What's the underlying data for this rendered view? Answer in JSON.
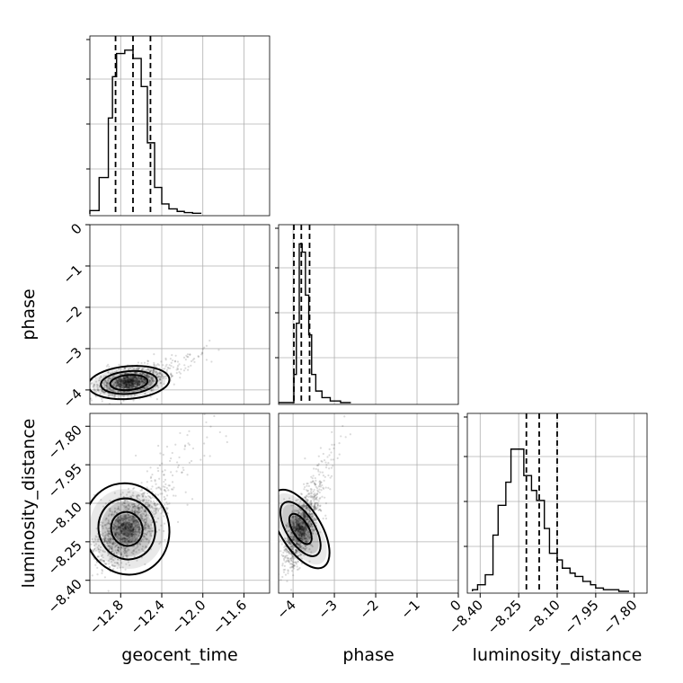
{
  "chart_data": {
    "type": "corner",
    "parameters": [
      "geocent_time",
      "phase",
      "luminosity_distance"
    ],
    "ranges": {
      "geocent_time": [
        -13.1,
        -11.35
      ],
      "phase": [
        -4.35,
        0
      ],
      "luminosity_distance": [
        -8.45,
        -7.75
      ]
    },
    "ticks": {
      "geocent_time": [
        -12.8,
        -12.4,
        -12.0,
        -11.6
      ],
      "phase": [
        -4,
        -3,
        -2,
        -1,
        0
      ],
      "luminosity_distance": [
        -8.4,
        -8.25,
        -8.1,
        -7.95,
        -7.8
      ]
    },
    "tick_labels": {
      "geocent_time": [
        "−12.8",
        "−12.4",
        "−12.0",
        "−11.6"
      ],
      "phase": [
        "−4",
        "−3",
        "−2",
        "−1",
        "0"
      ],
      "luminosity_distance": [
        "−8.40",
        "−8.25",
        "−8.10",
        "−7.95",
        "−7.80"
      ]
    },
    "quantiles": {
      "geocent_time": [
        -12.85,
        -12.68,
        -12.51
      ],
      "phase": [
        -3.98,
        -3.8,
        -3.6
      ],
      "luminosity_distance": [
        -8.22,
        -8.17,
        -8.1
      ]
    },
    "histograms": {
      "geocent_time": {
        "edges": [
          -13.1,
          -13.01,
          -12.92,
          -12.88,
          -12.84,
          -12.76,
          -12.68,
          -12.6,
          -12.54,
          -12.47,
          -12.4,
          -12.33,
          -12.25,
          -12.18,
          -12.1,
          -12.02
        ],
        "counts": [
          0.02,
          0.22,
          0.58,
          0.83,
          0.97,
          0.99,
          0.94,
          0.77,
          0.43,
          0.16,
          0.06,
          0.03,
          0.015,
          0.008,
          0.004
        ]
      },
      "phase": {
        "edges": [
          -4.35,
          -3.98,
          -3.92,
          -3.85,
          -3.78,
          -3.7,
          -3.62,
          -3.55,
          -3.45,
          -3.3,
          -3.1,
          -2.85,
          -2.6
        ],
        "counts": [
          0.0,
          0.17,
          0.48,
          0.96,
          0.91,
          0.65,
          0.41,
          0.17,
          0.07,
          0.03,
          0.01,
          0.0
        ]
      },
      "luminosity_distance": {
        "edges": [
          -8.43,
          -8.41,
          -8.38,
          -8.35,
          -8.33,
          -8.3,
          -8.28,
          -8.25,
          -8.23,
          -8.2,
          -8.18,
          -8.15,
          -8.13,
          -8.1,
          -8.08,
          -8.05,
          -8.03,
          -8.0,
          -7.97,
          -7.95,
          -7.92,
          -7.89,
          -7.86,
          -7.82
        ],
        "counts": [
          0.01,
          0.04,
          0.1,
          0.34,
          0.52,
          0.66,
          0.86,
          0.86,
          0.7,
          0.61,
          0.55,
          0.38,
          0.23,
          0.19,
          0.14,
          0.11,
          0.09,
          0.06,
          0.04,
          0.02,
          0.01,
          0.01,
          0.0
        ]
      }
    },
    "scatter": [
      {
        "x": "geocent_time",
        "y": "phase",
        "center": [
          -12.72,
          -3.82
        ],
        "spread": [
          0.16,
          0.16
        ],
        "corr": 0.35,
        "n": 1400,
        "contours": [
          [
            0.6,
            0.22
          ],
          [
            0.9,
            0.38
          ],
          [
            1.3,
            0.52
          ]
        ]
      },
      {
        "x": "geocent_time",
        "y": "luminosity_distance",
        "center": [
          -12.74,
          -8.2
        ],
        "spread": [
          0.16,
          0.07
        ],
        "corr": 0.55,
        "n": 1400,
        "contours": [
          [
            0.5,
            0.3
          ],
          [
            0.9,
            0.55
          ],
          [
            1.35,
            0.8
          ]
        ]
      },
      {
        "x": "phase",
        "y": "luminosity_distance",
        "center": [
          -3.82,
          -8.2
        ],
        "spread": [
          0.2,
          0.07
        ],
        "corr": 0.6,
        "n": 1300,
        "contours": [
          [
            0.5,
            0.28
          ],
          [
            0.9,
            0.5
          ],
          [
            1.3,
            0.72
          ]
        ]
      }
    ],
    "grid": true
  }
}
